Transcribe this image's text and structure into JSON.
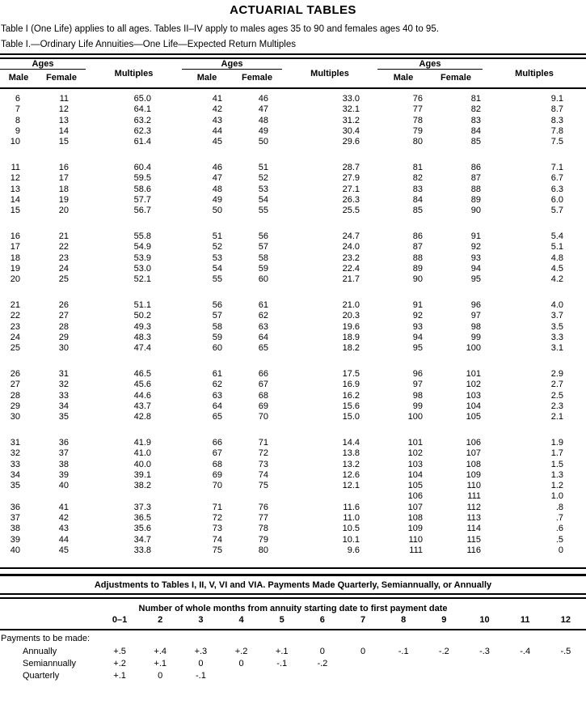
{
  "page": {
    "title": "ACTUARIAL TABLES",
    "intro": "Table I (One Life) applies to all ages. Tables II–IV apply to males ages 35 to 90 and females ages 40 to 95.",
    "table_caption": "Table I.—Ordinary Life Annuities—One Life—Expected Return Multiples"
  },
  "main_table": {
    "headers": {
      "ages": "Ages",
      "multiples": "Multiples",
      "male": "Male",
      "female": "Female"
    },
    "rows": [
      [
        "6",
        "11",
        "65.0",
        "41",
        "46",
        "33.0",
        "76",
        "81",
        "9.1"
      ],
      [
        "7",
        "12",
        "64.1",
        "42",
        "47",
        "32.1",
        "77",
        "82",
        "8.7"
      ],
      [
        "8",
        "13",
        "63.2",
        "43",
        "48",
        "31.2",
        "78",
        "83",
        "8.3"
      ],
      [
        "9",
        "14",
        "62.3",
        "44",
        "49",
        "30.4",
        "79",
        "84",
        "7.8"
      ],
      [
        "10",
        "15",
        "61.4",
        "45",
        "50",
        "29.6",
        "80",
        "85",
        "7.5"
      ],
      [
        "",
        "",
        "",
        "",
        "",
        "",
        "",
        "",
        ""
      ],
      [
        "11",
        "16",
        "60.4",
        "46",
        "51",
        "28.7",
        "81",
        "86",
        "7.1"
      ],
      [
        "12",
        "17",
        "59.5",
        "47",
        "52",
        "27.9",
        "82",
        "87",
        "6.7"
      ],
      [
        "13",
        "18",
        "58.6",
        "48",
        "53",
        "27.1",
        "83",
        "88",
        "6.3"
      ],
      [
        "14",
        "19",
        "57.7",
        "49",
        "54",
        "26.3",
        "84",
        "89",
        "6.0"
      ],
      [
        "15",
        "20",
        "56.7",
        "50",
        "55",
        "25.5",
        "85",
        "90",
        "5.7"
      ],
      [
        "",
        "",
        "",
        "",
        "",
        "",
        "",
        "",
        ""
      ],
      [
        "16",
        "21",
        "55.8",
        "51",
        "56",
        "24.7",
        "86",
        "91",
        "5.4"
      ],
      [
        "17",
        "22",
        "54.9",
        "52",
        "57",
        "24.0",
        "87",
        "92",
        "5.1"
      ],
      [
        "18",
        "23",
        "53.9",
        "53",
        "58",
        "23.2",
        "88",
        "93",
        "4.8"
      ],
      [
        "19",
        "24",
        "53.0",
        "54",
        "59",
        "22.4",
        "89",
        "94",
        "4.5"
      ],
      [
        "20",
        "25",
        "52.1",
        "55",
        "60",
        "21.7",
        "90",
        "95",
        "4.2"
      ],
      [
        "",
        "",
        "",
        "",
        "",
        "",
        "",
        "",
        ""
      ],
      [
        "21",
        "26",
        "51.1",
        "56",
        "61",
        "21.0",
        "91",
        "96",
        "4.0"
      ],
      [
        "22",
        "27",
        "50.2",
        "57",
        "62",
        "20.3",
        "92",
        "97",
        "3.7"
      ],
      [
        "23",
        "28",
        "49.3",
        "58",
        "63",
        "19.6",
        "93",
        "98",
        "3.5"
      ],
      [
        "24",
        "29",
        "48.3",
        "59",
        "64",
        "18.9",
        "94",
        "99",
        "3.3"
      ],
      [
        "25",
        "30",
        "47.4",
        "60",
        "65",
        "18.2",
        "95",
        "100",
        "3.1"
      ],
      [
        "",
        "",
        "",
        "",
        "",
        "",
        "",
        "",
        ""
      ],
      [
        "26",
        "31",
        "46.5",
        "61",
        "66",
        "17.5",
        "96",
        "101",
        "2.9"
      ],
      [
        "27",
        "32",
        "45.6",
        "62",
        "67",
        "16.9",
        "97",
        "102",
        "2.7"
      ],
      [
        "28",
        "33",
        "44.6",
        "63",
        "68",
        "16.2",
        "98",
        "103",
        "2.5"
      ],
      [
        "29",
        "34",
        "43.7",
        "64",
        "69",
        "15.6",
        "99",
        "104",
        "2.3"
      ],
      [
        "30",
        "35",
        "42.8",
        "65",
        "70",
        "15.0",
        "100",
        "105",
        "2.1"
      ],
      [
        "",
        "",
        "",
        "",
        "",
        "",
        "",
        "",
        ""
      ],
      [
        "31",
        "36",
        "41.9",
        "66",
        "71",
        "14.4",
        "101",
        "106",
        "1.9"
      ],
      [
        "32",
        "37",
        "41.0",
        "67",
        "72",
        "13.8",
        "102",
        "107",
        "1.7"
      ],
      [
        "33",
        "38",
        "40.0",
        "68",
        "73",
        "13.2",
        "103",
        "108",
        "1.5"
      ],
      [
        "34",
        "39",
        "39.1",
        "69",
        "74",
        "12.6",
        "104",
        "109",
        "1.3"
      ],
      [
        "35",
        "40",
        "38.2",
        "70",
        "75",
        "12.1",
        "105",
        "110",
        "1.2"
      ],
      [
        "",
        "",
        "",
        "",
        "",
        "",
        "106",
        "111",
        "1.0"
      ],
      [
        "36",
        "41",
        "37.3",
        "71",
        "76",
        "11.6",
        "107",
        "112",
        ".8"
      ],
      [
        "37",
        "42",
        "36.5",
        "72",
        "77",
        "11.0",
        "108",
        "113",
        ".7"
      ],
      [
        "38",
        "43",
        "35.6",
        "73",
        "78",
        "10.5",
        "109",
        "114",
        ".6"
      ],
      [
        "39",
        "44",
        "34.7",
        "74",
        "79",
        "10.1",
        "110",
        "115",
        ".5"
      ],
      [
        "40",
        "45",
        "33.8",
        "75",
        "80",
        "9.6",
        "111",
        "116",
        "0"
      ]
    ]
  },
  "adjustments": {
    "band_title": "Adjustments to Tables I, II, V, VI and VIA. Payments Made Quarterly, Semiannually, or Annually",
    "months_header": "Number of whole months from annuity starting date to first payment date",
    "month_columns": [
      "0–1",
      "2",
      "3",
      "4",
      "5",
      "6",
      "7",
      "8",
      "9",
      "10",
      "11",
      "12"
    ],
    "section_label": "Payments to be made:",
    "rows": [
      {
        "label": "Annually",
        "values": [
          "+.5",
          "+.4",
          "+.3",
          "+.2",
          "+.1",
          "0",
          "0",
          "-.1",
          "-.2",
          "-.3",
          "-.4",
          "-.5"
        ]
      },
      {
        "label": "Semiannually",
        "values": [
          "+.2",
          "+.1",
          "0",
          "0",
          "-.1",
          "-.2",
          "",
          "",
          "",
          "",
          "",
          ""
        ]
      },
      {
        "label": "Quarterly",
        "values": [
          "+.1",
          "0",
          "-.1",
          "",
          "",
          "",
          "",
          "",
          "",
          "",
          "",
          ""
        ]
      }
    ]
  }
}
